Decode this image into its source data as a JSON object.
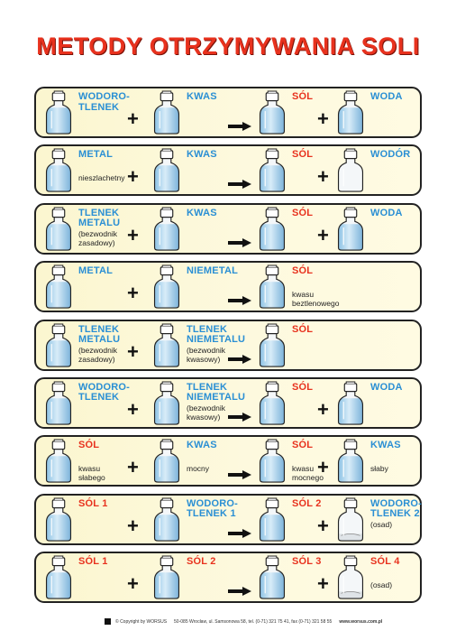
{
  "title": "METODY OTRZYMYWANIA SOLI",
  "rows": [
    {
      "items": [
        {
          "label": "WODORO-\nTLENEK",
          "color": "blue",
          "note": "",
          "fill": "mid"
        },
        {
          "label": "KWAS",
          "color": "blue",
          "note": "",
          "fill": "mid"
        },
        {
          "label": "SÓL",
          "color": "red",
          "note": "",
          "fill": "mid"
        },
        {
          "label": "WODA",
          "color": "blue",
          "note": "",
          "fill": "mid"
        }
      ]
    },
    {
      "items": [
        {
          "label": "METAL",
          "color": "blue",
          "note": "nieszlachetny",
          "fill": "mid"
        },
        {
          "label": "KWAS",
          "color": "blue",
          "note": "",
          "fill": "mid"
        },
        {
          "label": "SÓL",
          "color": "red",
          "note": "",
          "fill": "mid"
        },
        {
          "label": "WODÓR",
          "color": "blue",
          "note": "",
          "fill": "empty"
        }
      ]
    },
    {
      "items": [
        {
          "label": "TLENEK\nMETALU",
          "color": "blue",
          "note": "(bezwodnik\nzasadowy)",
          "fill": "mid"
        },
        {
          "label": "KWAS",
          "color": "blue",
          "note": "",
          "fill": "mid"
        },
        {
          "label": "SÓL",
          "color": "red",
          "note": "",
          "fill": "mid"
        },
        {
          "label": "WODA",
          "color": "blue",
          "note": "",
          "fill": "mid"
        }
      ]
    },
    {
      "items": [
        {
          "label": "METAL",
          "color": "blue",
          "note": "",
          "fill": "mid"
        },
        {
          "label": "NIEMETAL",
          "color": "blue",
          "note": "",
          "fill": "mid"
        },
        {
          "label": "SÓL",
          "color": "red",
          "note": "kwasu\nbeztlenowego",
          "fill": "mid"
        }
      ]
    },
    {
      "items": [
        {
          "label": "TLENEK\nMETALU",
          "color": "blue",
          "note": "(bezwodnik\nzasadowy)",
          "fill": "mid"
        },
        {
          "label": "TLENEK\nNIEMETALU",
          "color": "blue",
          "note": "(bezwodnik\nkwasowy)",
          "fill": "mid"
        },
        {
          "label": "SÓL",
          "color": "red",
          "note": "",
          "fill": "mid"
        }
      ]
    },
    {
      "items": [
        {
          "label": "WODORO-\nTLENEK",
          "color": "blue",
          "note": "",
          "fill": "mid"
        },
        {
          "label": "TLENEK\nNIEMETALU",
          "color": "blue",
          "note": "(bezwodnik\nkwasowy)",
          "fill": "mid"
        },
        {
          "label": "SÓL",
          "color": "red",
          "note": "",
          "fill": "mid"
        },
        {
          "label": "WODA",
          "color": "blue",
          "note": "",
          "fill": "mid"
        }
      ]
    },
    {
      "items": [
        {
          "label": "SÓL",
          "color": "red",
          "note": "kwasu\nsłabego",
          "fill": "mid"
        },
        {
          "label": "KWAS",
          "color": "blue",
          "note": "mocny",
          "fill": "mid"
        },
        {
          "label": "SÓL",
          "color": "red",
          "note": "kwasu\nmocnego",
          "fill": "mid"
        },
        {
          "label": "KWAS",
          "color": "blue",
          "note": "słaby",
          "fill": "mid"
        }
      ]
    },
    {
      "items": [
        {
          "label": "SÓL 1",
          "color": "red",
          "note": "",
          "fill": "mid"
        },
        {
          "label": "WODORO-\nTLENEK 1",
          "color": "blue",
          "note": "",
          "fill": "mid"
        },
        {
          "label": "SÓL 2",
          "color": "red",
          "note": "",
          "fill": "mid"
        },
        {
          "label": "WODORO-\nTLENEK 2",
          "color": "blue",
          "note": "(osad)",
          "fill": "sediment"
        }
      ]
    },
    {
      "items": [
        {
          "label": "SÓL 1",
          "color": "red",
          "note": "",
          "fill": "mid"
        },
        {
          "label": "SÓL 2",
          "color": "red",
          "note": "",
          "fill": "mid"
        },
        {
          "label": "SÓL 3",
          "color": "red",
          "note": "",
          "fill": "mid"
        },
        {
          "label": "SÓL 4",
          "color": "red",
          "note": "(osad)",
          "fill": "sediment"
        }
      ]
    }
  ],
  "symbols": {
    "plus": "+"
  },
  "footer": {
    "copyright": "© Copyright by WORSUS",
    "address": "50-085 Wrocław, ul. Samsonowa 58, tel. (0-71) 321 75 41, fax (0-71) 321 58 55",
    "website": "www.worsus.com.pl"
  },
  "colors": {
    "title": "#e8321e",
    "blue": "#2a8fd4",
    "red": "#e8321e",
    "panel": "#fbf6cf"
  }
}
